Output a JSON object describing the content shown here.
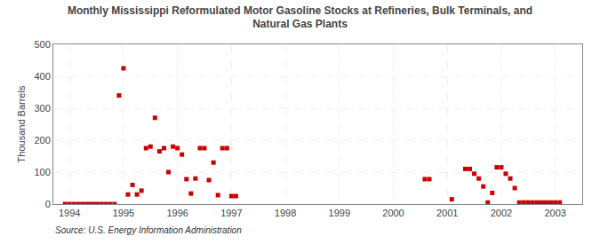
{
  "chart_data": {
    "type": "scatter",
    "title": "Monthly Mississippi Reformulated Motor Gasoline Stocks at Refineries, Bulk Terminals, and\nNatural Gas Plants",
    "ylabel": "Thousand Barrels",
    "annotation": "Source: U.S. Energy Information Administration",
    "color": "#cc0000",
    "marker": "square",
    "grid": true,
    "xlim": [
      1993.7,
      2003.5
    ],
    "ylim": [
      0,
      500
    ],
    "xticks": [
      1994,
      1995,
      1996,
      1997,
      1998,
      1999,
      2000,
      2001,
      2002,
      2003
    ],
    "yticks": [
      0,
      100,
      200,
      300,
      400,
      500
    ],
    "x": [
      1993.917,
      1994.0,
      1994.083,
      1994.167,
      1994.25,
      1994.333,
      1994.417,
      1994.5,
      1994.583,
      1994.667,
      1994.75,
      1994.833,
      1994.917,
      1995.0,
      1995.083,
      1995.167,
      1995.25,
      1995.333,
      1995.417,
      1995.5,
      1995.583,
      1995.667,
      1995.75,
      1995.833,
      1995.917,
      1996.0,
      1996.083,
      1996.167,
      1996.25,
      1996.333,
      1996.417,
      1996.5,
      1996.583,
      1996.667,
      1996.75,
      1996.833,
      1996.917,
      1997.0,
      1997.083,
      2000.583,
      2000.667,
      2001.083,
      2001.333,
      2001.417,
      2001.5,
      2001.583,
      2001.667,
      2001.75,
      2001.833,
      2001.917,
      2002.0,
      2002.083,
      2002.167,
      2002.25,
      2002.333,
      2002.417,
      2002.5,
      2002.583,
      2002.667,
      2002.75,
      2002.833,
      2002.917,
      2003.0,
      2003.083
    ],
    "values": [
      0,
      0,
      0,
      0,
      0,
      0,
      0,
      0,
      0,
      0,
      0,
      0,
      340,
      425,
      30,
      60,
      30,
      42,
      175,
      180,
      270,
      165,
      175,
      100,
      180,
      175,
      155,
      78,
      33,
      80,
      175,
      175,
      75,
      130,
      28,
      175,
      175,
      25,
      25,
      78,
      78,
      15,
      110,
      110,
      95,
      80,
      55,
      5,
      35,
      115,
      115,
      95,
      80,
      50,
      5,
      5,
      5,
      5,
      5,
      5,
      5,
      5,
      5,
      5
    ]
  }
}
